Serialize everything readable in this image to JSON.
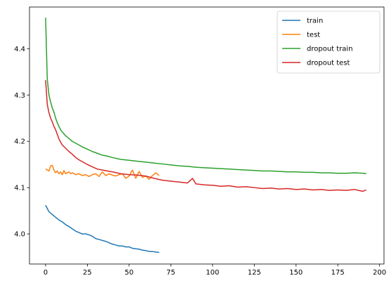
{
  "chart_data": {
    "type": "line",
    "title": "",
    "xlabel": "",
    "ylabel": "",
    "xlim": [
      -9.65,
      202.65
    ],
    "ylim": [
      3.935,
      4.49
    ],
    "xticks": [
      0,
      25,
      50,
      75,
      100,
      125,
      150,
      175,
      200
    ],
    "yticks": [
      4.0,
      4.1,
      4.2,
      4.3,
      4.4
    ],
    "ytick_labels": [
      "4.0",
      "4.1",
      "4.2",
      "4.3",
      "4.4"
    ],
    "grid": false,
    "legend_position": "top-right",
    "series": [
      {
        "name": "train",
        "color": "#1f77b4",
        "x": [
          0,
          2,
          4,
          6,
          8,
          10,
          12,
          14,
          16,
          18,
          20,
          22,
          24,
          26,
          28,
          30,
          32,
          34,
          36,
          38,
          40,
          42,
          44,
          46,
          48,
          50,
          52,
          54,
          56,
          58,
          60,
          62,
          64,
          66,
          68
        ],
        "y": [
          4.062,
          4.048,
          4.042,
          4.036,
          4.03,
          4.026,
          4.02,
          4.016,
          4.011,
          4.006,
          4.003,
          4.0,
          4.0,
          3.998,
          3.995,
          3.99,
          3.988,
          3.986,
          3.984,
          3.981,
          3.978,
          3.976,
          3.974,
          3.974,
          3.972,
          3.972,
          3.969,
          3.968,
          3.967,
          3.965,
          3.964,
          3.962,
          3.962,
          3.961,
          3.96
        ]
      },
      {
        "name": "test",
        "color": "#ff7f0e",
        "x": [
          0,
          2,
          3,
          4,
          5,
          6,
          7,
          8,
          9,
          10,
          11,
          12,
          13,
          14,
          15,
          16,
          18,
          20,
          22,
          24,
          26,
          28,
          30,
          32,
          34,
          36,
          38,
          40,
          42,
          44,
          46,
          48,
          50,
          52,
          54,
          56,
          58,
          60,
          62,
          64,
          66,
          68
        ],
        "y": [
          4.14,
          4.136,
          4.147,
          4.148,
          4.138,
          4.132,
          4.136,
          4.13,
          4.134,
          4.128,
          4.137,
          4.13,
          4.132,
          4.134,
          4.13,
          4.132,
          4.128,
          4.13,
          4.126,
          4.128,
          4.124,
          4.128,
          4.13,
          4.124,
          4.134,
          4.126,
          4.13,
          4.127,
          4.125,
          4.128,
          4.13,
          4.12,
          4.125,
          4.138,
          4.12,
          4.135,
          4.122,
          4.125,
          4.118,
          4.126,
          4.132,
          4.126
        ]
      },
      {
        "name": "dropout train",
        "color": "#2ca02c",
        "x": [
          0,
          1,
          2,
          3,
          4,
          5,
          6,
          7,
          8,
          9,
          10,
          12,
          14,
          16,
          18,
          20,
          22,
          25,
          28,
          31,
          34,
          37,
          40,
          45,
          50,
          55,
          60,
          65,
          70,
          75,
          80,
          85,
          90,
          95,
          100,
          105,
          110,
          115,
          120,
          125,
          130,
          135,
          140,
          145,
          150,
          155,
          160,
          165,
          170,
          175,
          180,
          185,
          190,
          192
        ],
        "y": [
          4.467,
          4.335,
          4.3,
          4.285,
          4.272,
          4.263,
          4.25,
          4.24,
          4.232,
          4.225,
          4.22,
          4.212,
          4.206,
          4.2,
          4.196,
          4.192,
          4.188,
          4.183,
          4.178,
          4.174,
          4.17,
          4.168,
          4.165,
          4.161,
          4.159,
          4.157,
          4.155,
          4.153,
          4.151,
          4.149,
          4.147,
          4.146,
          4.144,
          4.143,
          4.142,
          4.141,
          4.14,
          4.139,
          4.138,
          4.137,
          4.136,
          4.136,
          4.135,
          4.134,
          4.134,
          4.133,
          4.133,
          4.132,
          4.132,
          4.131,
          4.131,
          4.132,
          4.131,
          4.13
        ]
      },
      {
        "name": "dropout test",
        "color": "#d62728",
        "x": [
          0,
          1,
          2,
          3,
          4,
          5,
          6,
          7,
          8,
          9,
          10,
          12,
          14,
          16,
          18,
          20,
          22,
          25,
          28,
          31,
          34,
          37,
          40,
          45,
          50,
          55,
          60,
          65,
          70,
          75,
          80,
          85,
          88,
          90,
          95,
          100,
          105,
          110,
          115,
          120,
          125,
          130,
          135,
          140,
          145,
          150,
          155,
          160,
          165,
          170,
          175,
          180,
          185,
          190,
          192
        ],
        "y": [
          4.332,
          4.28,
          4.262,
          4.25,
          4.242,
          4.232,
          4.225,
          4.215,
          4.205,
          4.198,
          4.192,
          4.185,
          4.178,
          4.172,
          4.165,
          4.16,
          4.156,
          4.15,
          4.145,
          4.14,
          4.138,
          4.136,
          4.134,
          4.13,
          4.128,
          4.127,
          4.125,
          4.12,
          4.116,
          4.114,
          4.112,
          4.11,
          4.12,
          4.108,
          4.106,
          4.105,
          4.103,
          4.104,
          4.101,
          4.102,
          4.1,
          4.098,
          4.099,
          4.097,
          4.098,
          4.096,
          4.097,
          4.095,
          4.096,
          4.094,
          4.095,
          4.094,
          4.096,
          4.092,
          4.095
        ]
      }
    ]
  }
}
